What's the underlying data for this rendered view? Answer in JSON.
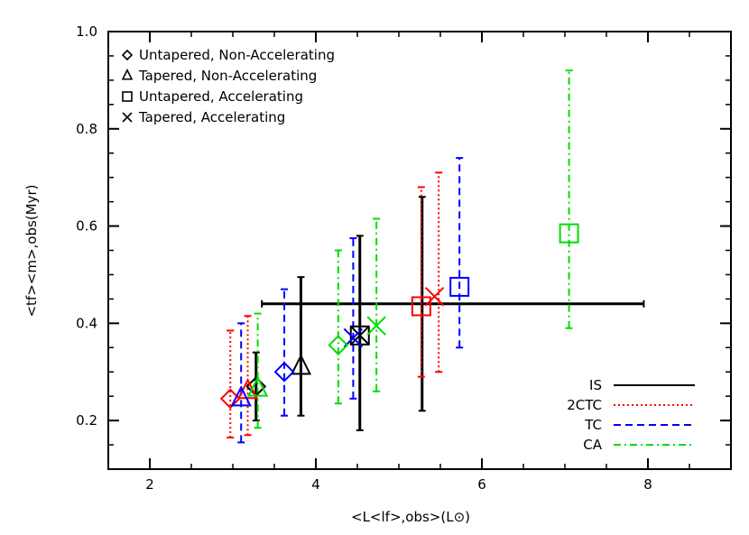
{
  "chart_data": {
    "type": "scatter",
    "xlabel": "<L<lf>,obs>(L⊙)",
    "ylabel": "<tf><m>,obs(Myr)",
    "xlim": [
      1.5,
      9.0
    ],
    "ylim": [
      0.1,
      1.0
    ],
    "xticks": [
      2,
      4,
      6,
      8
    ],
    "yticks": [
      0.2,
      0.4,
      0.6,
      0.8,
      1.0
    ],
    "xtick_labels": [
      "2",
      "4",
      "6",
      "8"
    ],
    "ytick_labels": [
      "0.2",
      "0.4",
      "0.6",
      "0.8",
      "1.0"
    ],
    "grid": false,
    "marker_legend": [
      {
        "marker": "diamond",
        "label": "Untapered, Non-Accelerating"
      },
      {
        "marker": "triangle",
        "label": "Tapered, Non-Accelerating"
      },
      {
        "marker": "square",
        "label": "Untapered, Accelerating"
      },
      {
        "marker": "x",
        "label": "Tapered, Accelerating"
      }
    ],
    "series": [
      {
        "name": "IS",
        "color": "#000000",
        "linestyle": "solid",
        "points": [
          {
            "marker": "diamond",
            "x": 3.28,
            "y": 0.27
          },
          {
            "marker": "triangle",
            "x": 3.82,
            "y": 0.31
          },
          {
            "marker": "square",
            "x": 4.53,
            "y": 0.375
          },
          {
            "marker": "x",
            "x": 4.53,
            "y": 0.375
          }
        ],
        "errorbars": [
          {
            "x": 3.28,
            "ylo": 0.2,
            "yhi": 0.34
          },
          {
            "x": 3.82,
            "ylo": 0.21,
            "yhi": 0.495
          },
          {
            "x": 4.53,
            "ylo": 0.18,
            "yhi": 0.58
          },
          {
            "x": 5.28,
            "ylo": 0.22,
            "yhi": 0.66
          }
        ],
        "h_errorbar": {
          "y": 0.44,
          "xlo": 3.35,
          "xhi": 7.95
        }
      },
      {
        "name": "2CTC",
        "color": "#ff0000",
        "linestyle": "dotted",
        "points": [
          {
            "marker": "diamond",
            "x": 2.97,
            "y": 0.245
          },
          {
            "marker": "triangle",
            "x": 3.18,
            "y": 0.26
          },
          {
            "marker": "square",
            "x": 5.27,
            "y": 0.435
          },
          {
            "marker": "x",
            "x": 5.43,
            "y": 0.455
          }
        ],
        "errorbars": [
          {
            "x": 2.97,
            "ylo": 0.165,
            "yhi": 0.385
          },
          {
            "x": 3.18,
            "ylo": 0.17,
            "yhi": 0.415
          },
          {
            "x": 5.27,
            "ylo": 0.29,
            "yhi": 0.68
          },
          {
            "x": 5.48,
            "ylo": 0.3,
            "yhi": 0.71
          }
        ]
      },
      {
        "name": "TC",
        "color": "#0000ff",
        "linestyle": "dashed",
        "points": [
          {
            "marker": "triangle",
            "x": 3.1,
            "y": 0.245
          },
          {
            "marker": "diamond",
            "x": 3.62,
            "y": 0.3
          },
          {
            "marker": "x",
            "x": 4.45,
            "y": 0.37
          },
          {
            "marker": "square",
            "x": 5.73,
            "y": 0.475
          }
        ],
        "errorbars": [
          {
            "x": 3.1,
            "ylo": 0.155,
            "yhi": 0.4
          },
          {
            "x": 3.62,
            "ylo": 0.21,
            "yhi": 0.47
          },
          {
            "x": 4.45,
            "ylo": 0.245,
            "yhi": 0.575
          },
          {
            "x": 5.73,
            "ylo": 0.35,
            "yhi": 0.74
          }
        ]
      },
      {
        "name": "CA",
        "color": "#00dd00",
        "linestyle": "dashdot",
        "points": [
          {
            "marker": "triangle",
            "x": 3.3,
            "y": 0.265
          },
          {
            "marker": "diamond",
            "x": 4.27,
            "y": 0.355
          },
          {
            "marker": "x",
            "x": 4.73,
            "y": 0.395
          },
          {
            "marker": "square",
            "x": 7.05,
            "y": 0.585
          }
        ],
        "errorbars": [
          {
            "x": 3.3,
            "ylo": 0.185,
            "yhi": 0.42
          },
          {
            "x": 4.27,
            "ylo": 0.235,
            "yhi": 0.55
          },
          {
            "x": 4.73,
            "ylo": 0.26,
            "yhi": 0.615
          },
          {
            "x": 7.05,
            "ylo": 0.39,
            "yhi": 0.92
          }
        ]
      }
    ]
  }
}
